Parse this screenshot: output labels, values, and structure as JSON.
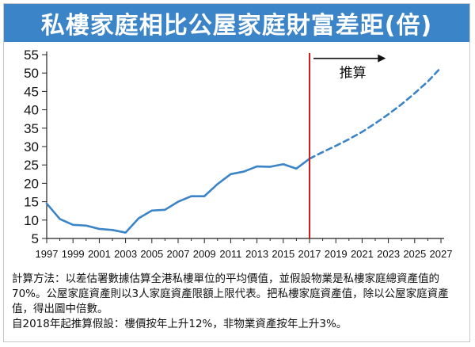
{
  "title": "私樓家庭相比公屋家庭財富差距(倍)",
  "chart_data": {
    "type": "line",
    "title": "私樓家庭相比公屋家庭財富差距(倍)",
    "xlabel": "",
    "ylabel": "",
    "xlim": [
      1997,
      2027
    ],
    "ylim": [
      5,
      55
    ],
    "y_ticks": [
      5,
      10,
      15,
      20,
      25,
      30,
      35,
      40,
      45,
      50,
      55
    ],
    "x_tick_labels": [
      "1997",
      "1999",
      "2001",
      "2003",
      "2005",
      "2007",
      "2009",
      "2011",
      "2013",
      "2015",
      "2017",
      "2019",
      "2021",
      "2023",
      "2025",
      "2027"
    ],
    "grid": false,
    "series": [
      {
        "style": "solid",
        "color": "#3a84c7",
        "x": [
          1997,
          1998,
          1999,
          2000,
          2001,
          2002,
          2003,
          2004,
          2005,
          2006,
          2007,
          2008,
          2009,
          2010,
          2011,
          2012,
          2013,
          2014,
          2015,
          2016,
          2017
        ],
        "y": [
          14.5,
          10.3,
          8.7,
          8.5,
          7.6,
          7.3,
          6.6,
          10.5,
          12.6,
          12.8,
          15.0,
          16.5,
          16.5,
          19.8,
          22.5,
          23.2,
          24.6,
          24.5,
          25.2,
          24.0,
          26.7
        ]
      },
      {
        "style": "dashed",
        "color": "#3a84c7",
        "x": [
          2017,
          2018,
          2019,
          2020,
          2021,
          2022,
          2023,
          2024,
          2025,
          2026,
          2027
        ],
        "y": [
          26.7,
          28.5,
          30.2,
          32.0,
          34.0,
          36.3,
          38.8,
          41.5,
          44.5,
          47.7,
          51.5
        ]
      }
    ],
    "annotations": [
      {
        "type": "vline",
        "x": 2017,
        "color": "#d7191c"
      },
      {
        "type": "arrow",
        "label": "推算",
        "x_start": 2017.3,
        "x_end": 2022.8,
        "y": 54
      }
    ]
  },
  "notes": [
    "計算方法：以差估署數據估算全港私樓單位的平均價值，並假設物業是私樓家庭總資產值的70%。公屋家庭資產則以3人家庭資產限額上限代表。把私樓家庭資產值，除以公屋家庭資產值，得出圖中倍數。",
    "自2018年起推算假設：樓價按年上升12%，非物業資產按年上升3%。"
  ]
}
